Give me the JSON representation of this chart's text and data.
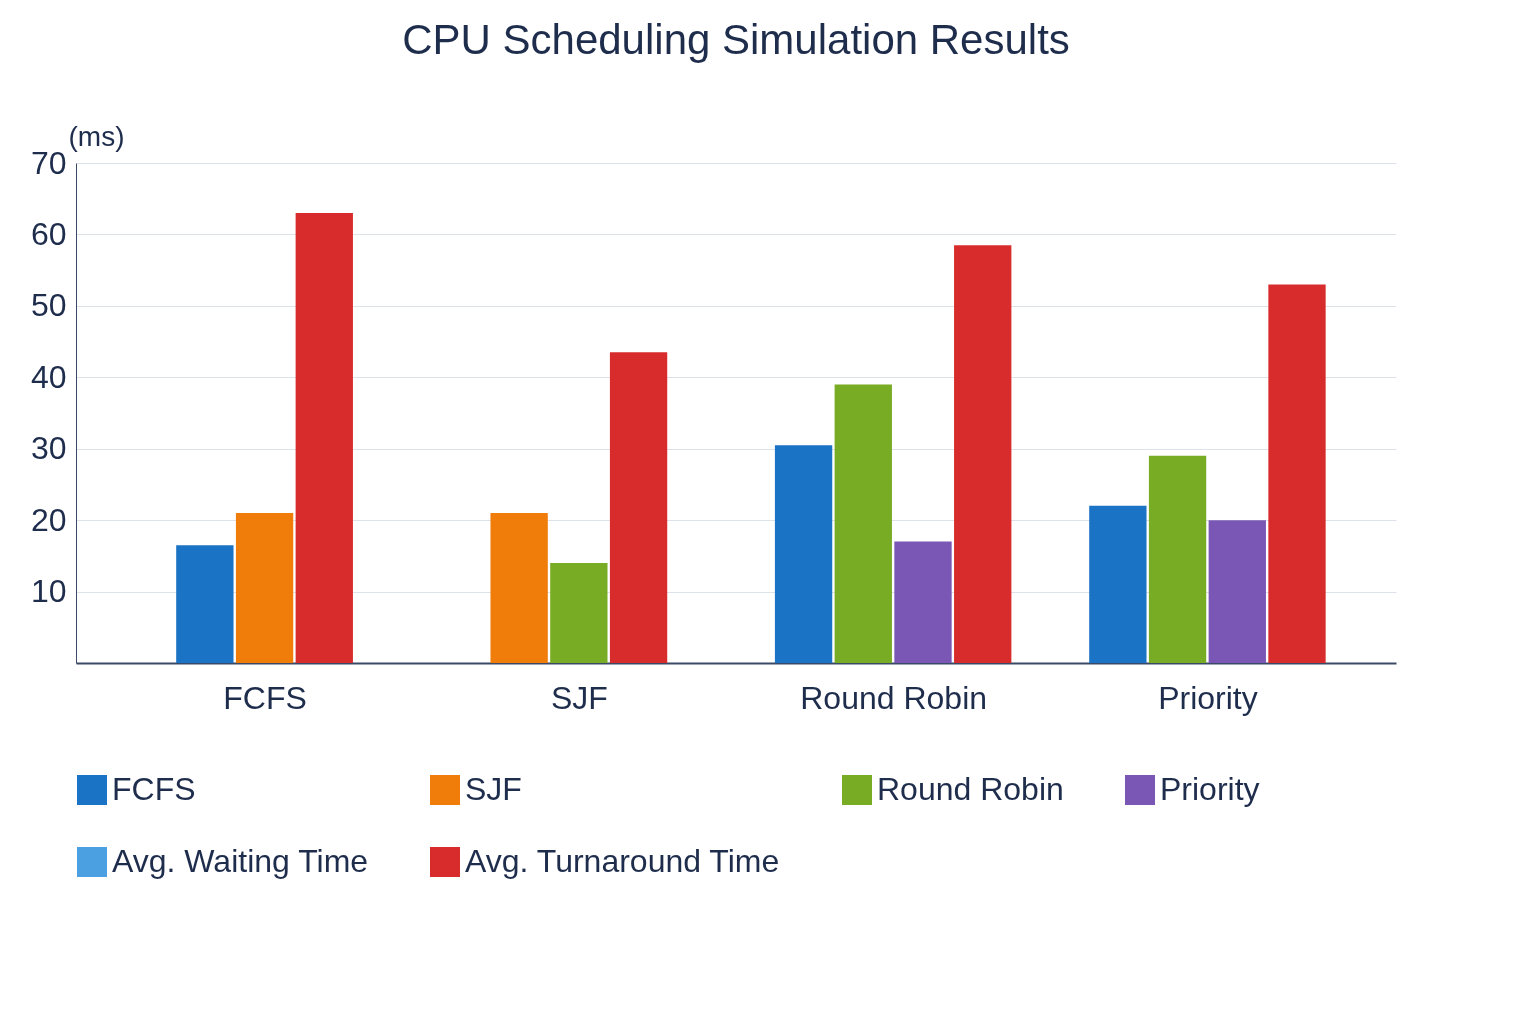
{
  "chart_data": {
    "type": "bar",
    "title": "CPU Scheduling Simulation Results",
    "ylabel": "(ms)",
    "categories": [
      "FCFS",
      "SJF",
      "Round Robin",
      "Priority"
    ],
    "series": [
      {
        "name": "FCFS",
        "color": "#1a73c4",
        "values": [
          16.5,
          null,
          30.5,
          22
        ]
      },
      {
        "name": "SJF",
        "color": "#f07c0a",
        "values": [
          21,
          21,
          null,
          null
        ]
      },
      {
        "name": "Round Robin",
        "color": "#78ac24",
        "values": [
          null,
          14,
          39,
          29
        ]
      },
      {
        "name": "Priority",
        "color": "#7b57b5",
        "values": [
          null,
          null,
          17,
          20
        ]
      },
      {
        "name": "Avg. Waiting Time",
        "color": "#4aa0e0",
        "values": [
          null,
          null,
          null,
          null
        ]
      },
      {
        "name": "Avg. Turnaround Time",
        "color": "#d82c2c",
        "values": [
          63,
          43.5,
          58.5,
          53
        ]
      }
    ],
    "ylim": [
      0,
      70
    ],
    "yticks": [
      10,
      20,
      30,
      40,
      50,
      60,
      70
    ],
    "grid": "y",
    "legend": "bottom"
  }
}
